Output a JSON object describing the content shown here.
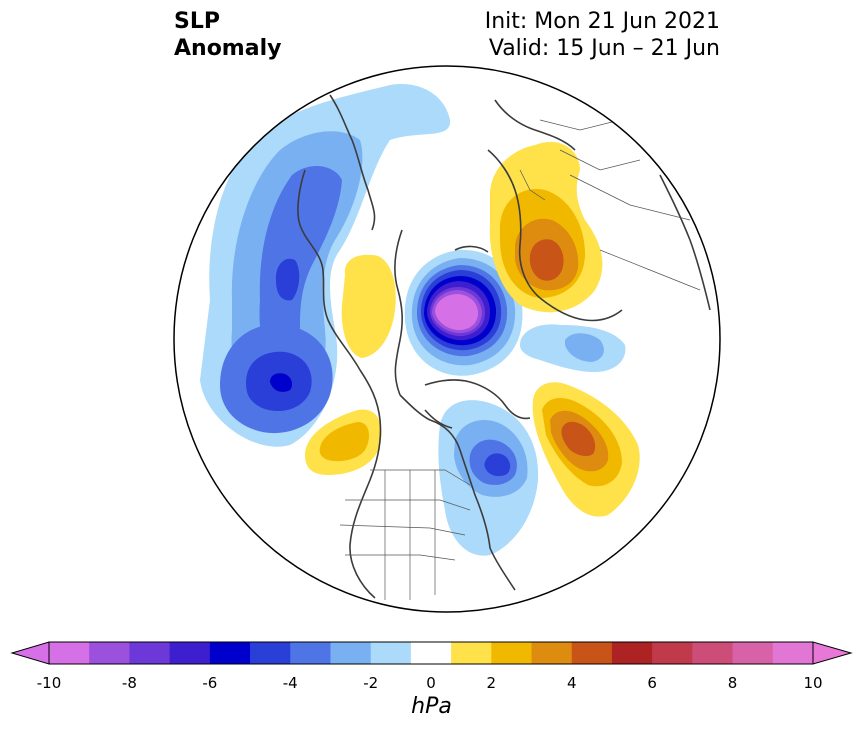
{
  "header": {
    "title_line1": "SLP",
    "title_line2": "Anomaly",
    "init_text": "Init: Mon 21 Jun 2021",
    "valid_text": "Valid: 15 Jun – 21 Jun"
  },
  "map": {
    "projection": "north-polar-stereographic",
    "region": "Northern Hemisphere",
    "field": "sea level pressure anomaly",
    "anomaly_centers": [
      {
        "region": "Arctic Ocean near the North Pole",
        "sign": "negative",
        "peak_hPa": -10
      },
      {
        "region": "North Pacific (near Aleutians)",
        "sign": "negative",
        "peak_hPa": -5
      },
      {
        "region": "Siberia / East Asia coast",
        "sign": "negative",
        "peak_hPa": -4
      },
      {
        "region": "Hudson Bay / eastern Canada",
        "sign": "negative",
        "peak_hPa": -4
      },
      {
        "region": "Western Russia / Scandinavia",
        "sign": "positive",
        "peak_hPa": 4
      },
      {
        "region": "North Atlantic",
        "sign": "positive",
        "peak_hPa": 4
      },
      {
        "region": "Alaska / Bering Strait",
        "sign": "positive",
        "peak_hPa": 2
      },
      {
        "region": "Gulf of Alaska / Pacific Northwest",
        "sign": "positive",
        "peak_hPa": 2
      }
    ]
  },
  "colorbar": {
    "unit": "hPa",
    "ticks": [
      "-10",
      "-8",
      "-6",
      "-4",
      "-2",
      "0",
      "2",
      "4",
      "6",
      "8",
      "10"
    ],
    "levels": [
      -10,
      -9,
      -8,
      -7,
      -6,
      -5,
      -4,
      -3,
      -2,
      -1,
      1,
      2,
      3,
      4,
      5,
      6,
      7,
      8,
      9,
      10
    ],
    "colors": [
      "#d670e6",
      "#9b50de",
      "#6d38d8",
      "#3e1fd0",
      "#0000cc",
      "#2a3ed8",
      "#4f74e6",
      "#79b0f2",
      "#abdafa",
      "#ffffff",
      "#ffe14a",
      "#f1b800",
      "#de8c10",
      "#c85418",
      "#ad2222",
      "#c03a4c",
      "#cc4e78",
      "#d862a8",
      "#e276d4"
    ],
    "extend_low_color": "#d670e6",
    "extend_high_color": "#e878d8"
  }
}
